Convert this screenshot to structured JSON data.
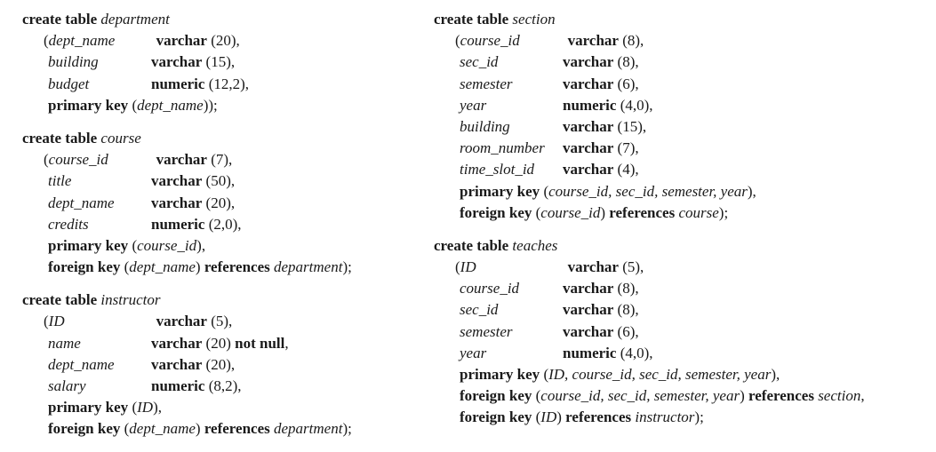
{
  "left": [
    {
      "keyword": "create table",
      "name": "department",
      "columns": [
        {
          "name": "dept_name",
          "type": "varchar",
          "args": " (20),",
          "extra": ""
        },
        {
          "name": "building",
          "type": "varchar",
          "args": " (15),",
          "extra": ""
        },
        {
          "name": "budget",
          "type": "numeric",
          "args": " (12,2),",
          "extra": ""
        }
      ],
      "constraints": [
        {
          "kw": "primary key",
          "open": " (",
          "cols": "dept_name",
          "close": "));",
          "ref_kw": "",
          "ref_table": "",
          "end": ""
        }
      ]
    },
    {
      "keyword": "create table",
      "name": "course",
      "columns": [
        {
          "name": "course_id",
          "type": "varchar",
          "args": " (7),",
          "extra": ""
        },
        {
          "name": "title",
          "type": "varchar",
          "args": " (50),",
          "extra": ""
        },
        {
          "name": "dept_name",
          "type": "varchar",
          "args": " (20),",
          "extra": ""
        },
        {
          "name": "credits",
          "type": "numeric",
          "args": " (2,0),",
          "extra": ""
        }
      ],
      "constraints": [
        {
          "kw": "primary key",
          "open": " (",
          "cols": "course_id",
          "close": "),",
          "ref_kw": "",
          "ref_table": "",
          "end": ""
        },
        {
          "kw": "foreign key",
          "open": " (",
          "cols": "dept_name",
          "close": ") ",
          "ref_kw": "references",
          "ref_table": " department",
          "end": ");"
        }
      ]
    },
    {
      "keyword": "create table",
      "name": "instructor",
      "columns": [
        {
          "name": "ID",
          "type": "varchar",
          "args": " (5),",
          "extra": ""
        },
        {
          "name": "name",
          "type": "varchar",
          "args": " (20) ",
          "extra": "not null"
        },
        {
          "name": "dept_name",
          "type": "varchar",
          "args": " (20),",
          "extra": ""
        },
        {
          "name": "salary",
          "type": "numeric",
          "args": " (8,2),",
          "extra": ""
        }
      ],
      "constraints": [
        {
          "kw": "primary key",
          "open": " (",
          "cols": "ID",
          "close": "),",
          "ref_kw": "",
          "ref_table": "",
          "end": ""
        },
        {
          "kw": "foreign key",
          "open": " (",
          "cols": "dept_name",
          "close": ") ",
          "ref_kw": "references",
          "ref_table": " department",
          "end": ");"
        }
      ]
    }
  ],
  "right": [
    {
      "keyword": "create table",
      "name": "section",
      "columns": [
        {
          "name": "course_id",
          "type": "varchar",
          "args": " (8),",
          "extra": ""
        },
        {
          "name": "sec_id",
          "type": "varchar",
          "args": " (8),",
          "extra": ""
        },
        {
          "name": "semester",
          "type": "varchar",
          "args": " (6),",
          "extra": ""
        },
        {
          "name": "year",
          "type": "numeric",
          "args": " (4,0),",
          "extra": ""
        },
        {
          "name": "building",
          "type": "varchar",
          "args": " (15),",
          "extra": ""
        },
        {
          "name": "room_number",
          "type": "varchar",
          "args": " (7),",
          "extra": ""
        },
        {
          "name": "time_slot_id",
          "type": "varchar",
          "args": " (4),",
          "extra": ""
        }
      ],
      "constraints": [
        {
          "kw": "primary key",
          "open": " (",
          "cols": "course_id, sec_id, semester, year",
          "close": "),",
          "ref_kw": "",
          "ref_table": "",
          "end": ""
        },
        {
          "kw": "foreign key",
          "open": " (",
          "cols": "course_id",
          "close": ") ",
          "ref_kw": "references",
          "ref_table": " course",
          "end": ");"
        }
      ]
    },
    {
      "keyword": "create table",
      "name": "teaches",
      "columns": [
        {
          "name": "ID",
          "type": "varchar",
          "args": " (5),",
          "extra": ""
        },
        {
          "name": "course_id",
          "type": "varchar",
          "args": " (8),",
          "extra": ""
        },
        {
          "name": "sec_id",
          "type": "varchar",
          "args": " (8),",
          "extra": ""
        },
        {
          "name": "semester",
          "type": "varchar",
          "args": " (6),",
          "extra": ""
        },
        {
          "name": "year",
          "type": "numeric",
          "args": " (4,0),",
          "extra": ""
        }
      ],
      "constraints": [
        {
          "kw": "primary key",
          "open": " (",
          "cols": "ID, course_id, sec_id, semester, year",
          "close": "),",
          "ref_kw": "",
          "ref_table": "",
          "end": ""
        },
        {
          "kw": "foreign key",
          "open": " (",
          "cols": "course_id, sec_id, semester, year",
          "close": ") ",
          "ref_kw": "references",
          "ref_table": " section",
          "end": ","
        },
        {
          "kw": "foreign key",
          "open": " (",
          "cols": "ID",
          "close": ") ",
          "ref_kw": "references",
          "ref_table": " instructor",
          "end": ");"
        }
      ]
    }
  ]
}
